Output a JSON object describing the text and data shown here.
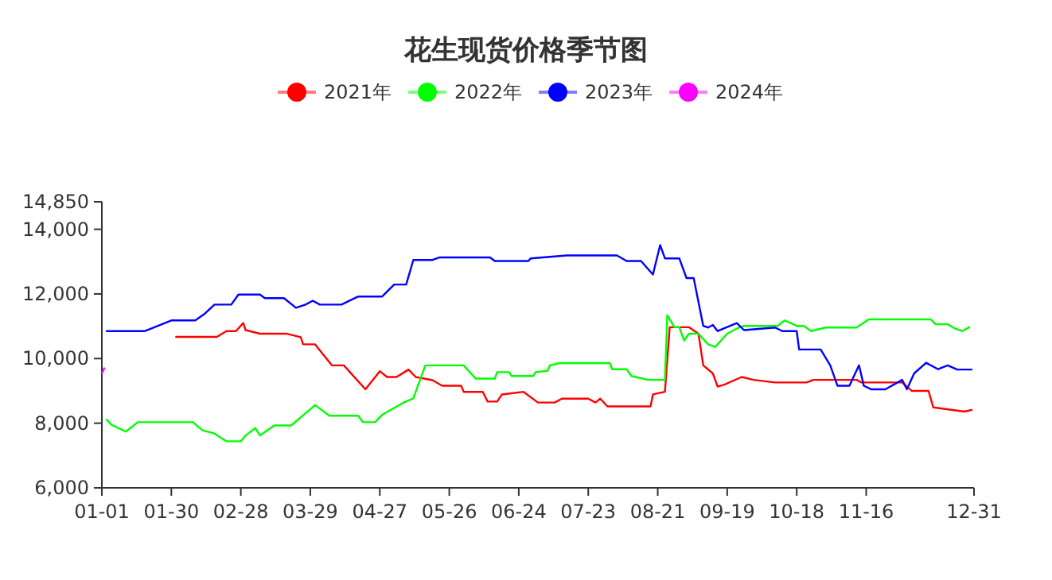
{
  "chart_data": {
    "type": "line",
    "title": "花生现货价格季节图",
    "legend": "top",
    "xlim": [
      "--01-01",
      "--12-31"
    ],
    "xticks": [
      {
        "value": "--01-01",
        "label": "01-01"
      },
      {
        "value": "--01-30",
        "label": "01-30"
      },
      {
        "value": "--02-28",
        "label": "02-28"
      },
      {
        "value": "--03-29",
        "label": "03-29"
      },
      {
        "value": "--04-27",
        "label": "04-27"
      },
      {
        "value": "--05-26",
        "label": "05-26"
      },
      {
        "value": "--06-24",
        "label": "06-24"
      },
      {
        "value": "--07-23",
        "label": "07-23"
      },
      {
        "value": "--08-21",
        "label": "08-21"
      },
      {
        "value": "--09-19",
        "label": "09-19"
      },
      {
        "value": "--10-18",
        "label": "10-18"
      },
      {
        "value": "--11-16",
        "label": "11-16"
      },
      {
        "value": "--12-31",
        "label": "12-31"
      }
    ],
    "ylim": [
      6000,
      14850
    ],
    "yticks": [
      {
        "value": 6000,
        "label": "6,000"
      },
      {
        "value": 8000,
        "label": "8,000"
      },
      {
        "value": 10000,
        "label": "10,000"
      },
      {
        "value": 12000,
        "label": "12,000"
      },
      {
        "value": 14000,
        "label": "14,000"
      },
      {
        "value": 14850,
        "label": "14,850"
      }
    ],
    "series": [
      {
        "name": "2021年",
        "color": "#ff0000",
        "x": [
          "--02-01",
          "--02-18",
          "--02-22",
          "--02-26",
          "--03-01",
          "--03-02",
          "--03-08",
          "--03-19",
          "--03-25",
          "--03-26",
          "--03-31",
          "--04-07",
          "--04-12",
          "--04-21",
          "--04-27",
          "--04-30",
          "--05-04",
          "--05-09",
          "--05-12",
          "--05-19",
          "--05-23",
          "--05-31",
          "--06-01",
          "--06-09",
          "--06-11",
          "--06-15",
          "--06-17",
          "--06-26",
          "--07-02",
          "--07-09",
          "--07-12",
          "--07-23",
          "--07-26",
          "--07-28",
          "--07-31",
          "--08-18",
          "--08-19",
          "--08-24",
          "--08-26",
          "--09-03",
          "--09-07",
          "--09-09",
          "--09-13",
          "--09-15",
          "--09-18",
          "--09-25",
          "--09-30",
          "--10-09",
          "--10-22",
          "--10-25",
          "--11-12",
          "--11-14",
          "--12-01",
          "--12-05",
          "--12-12",
          "--12-14",
          "--12-27",
          "--12-30"
        ],
        "values": [
          10670,
          10670,
          10850,
          10850,
          11100,
          10880,
          10770,
          10770,
          10660,
          10440,
          10440,
          9790,
          9790,
          9050,
          9610,
          9430,
          9430,
          9660,
          9430,
          9330,
          9160,
          9160,
          8970,
          8970,
          8670,
          8670,
          8890,
          8970,
          8640,
          8640,
          8760,
          8760,
          8640,
          8760,
          8520,
          8520,
          8890,
          8970,
          10970,
          10970,
          10770,
          9790,
          9540,
          9130,
          9200,
          9430,
          9340,
          9260,
          9260,
          9340,
          9340,
          9260,
          9260,
          9000,
          9000,
          8490,
          8360,
          8410
        ]
      },
      {
        "name": "2022年",
        "color": "#00ff00",
        "x": [
          "--01-03",
          "--01-05",
          "--01-11",
          "--01-16",
          "--02-08",
          "--02-12",
          "--02-17",
          "--02-22",
          "--02-28",
          "--03-02",
          "--03-06",
          "--03-08",
          "--03-14",
          "--03-21",
          "--03-27",
          "--03-31",
          "--04-06",
          "--04-18",
          "--04-20",
          "--04-25",
          "--04-28",
          "--05-07",
          "--05-11",
          "--05-16",
          "--06-01",
          "--06-06",
          "--06-14",
          "--06-15",
          "--06-20",
          "--06-21",
          "--06-30",
          "--07-01",
          "--07-06",
          "--07-07",
          "--07-11",
          "--08-01",
          "--08-02",
          "--08-08",
          "--08-10",
          "--08-17",
          "--08-24",
          "--08-25",
          "--08-28",
          "--08-30",
          "--09-01",
          "--09-03",
          "--09-07",
          "--09-11",
          "--09-14",
          "--09-19",
          "--09-23",
          "--09-26",
          "--10-10",
          "--10-13",
          "--10-18",
          "--10-21",
          "--10-24",
          "--10-30",
          "--11-12",
          "--11-17",
          "--12-13",
          "--12-15",
          "--12-20",
          "--12-23",
          "--12-26",
          "--12-29"
        ],
        "values": [
          8110,
          7950,
          7740,
          8030,
          8030,
          7780,
          7680,
          7440,
          7440,
          7620,
          7850,
          7620,
          7930,
          7930,
          8310,
          8560,
          8230,
          8230,
          8030,
          8030,
          8260,
          8640,
          8770,
          9790,
          9790,
          9380,
          9380,
          9580,
          9580,
          9460,
          9460,
          9580,
          9620,
          9790,
          9860,
          9860,
          9670,
          9670,
          9460,
          9340,
          9340,
          11340,
          10970,
          10970,
          10560,
          10770,
          10770,
          10440,
          10360,
          10770,
          10930,
          11010,
          11010,
          11180,
          11010,
          11010,
          10850,
          10960,
          10960,
          11210,
          11210,
          11060,
          11060,
          10930,
          10850,
          10970
        ]
      },
      {
        "name": "2023年",
        "color": "#0000ff",
        "x": [
          "--01-03",
          "--01-19",
          "--01-30",
          "--02-09",
          "--02-13",
          "--02-17",
          "--02-24",
          "--02-27",
          "--03-08",
          "--03-10",
          "--03-18",
          "--03-23",
          "--03-27",
          "--03-30",
          "--04-02",
          "--04-11",
          "--04-18",
          "--04-28",
          "--05-03",
          "--05-08",
          "--05-11",
          "--05-19",
          "--05-22",
          "--06-12",
          "--06-14",
          "--06-28",
          "--06-29",
          "--07-14",
          "--08-04",
          "--08-08",
          "--08-14",
          "--08-19",
          "--08-22",
          "--08-24",
          "--08-30",
          "--09-02",
          "--09-05",
          "--09-09",
          "--09-11",
          "--09-13",
          "--09-15",
          "--09-23",
          "--09-26",
          "--10-09",
          "--10-12",
          "--10-18",
          "--10-19",
          "--10-28",
          "--11-01",
          "--11-04",
          "--11-09",
          "--11-13",
          "--11-15",
          "--11-18",
          "--11-24",
          "--12-01",
          "--12-03",
          "--12-06",
          "--12-11",
          "--12-16",
          "--12-20",
          "--12-24",
          "--12-30"
        ],
        "values": [
          10850,
          10850,
          11180,
          11180,
          11390,
          11670,
          11670,
          11980,
          11980,
          11870,
          11870,
          11570,
          11670,
          11790,
          11670,
          11670,
          11920,
          11920,
          12290,
          12290,
          13050,
          13050,
          13130,
          13130,
          13020,
          13020,
          13100,
          13190,
          13190,
          13020,
          13020,
          12600,
          13510,
          13100,
          13100,
          12490,
          12490,
          11010,
          10960,
          11040,
          10850,
          11100,
          10880,
          10960,
          10850,
          10850,
          10280,
          10280,
          9790,
          9160,
          9160,
          9790,
          9160,
          9050,
          9050,
          9340,
          9050,
          9540,
          9870,
          9670,
          9790,
          9660,
          9660
        ]
      },
      {
        "name": "2024年",
        "color": "#ff00ff",
        "x": [
          "--01-01",
          "--01-02"
        ],
        "values": [
          9550,
          9700
        ]
      }
    ]
  }
}
